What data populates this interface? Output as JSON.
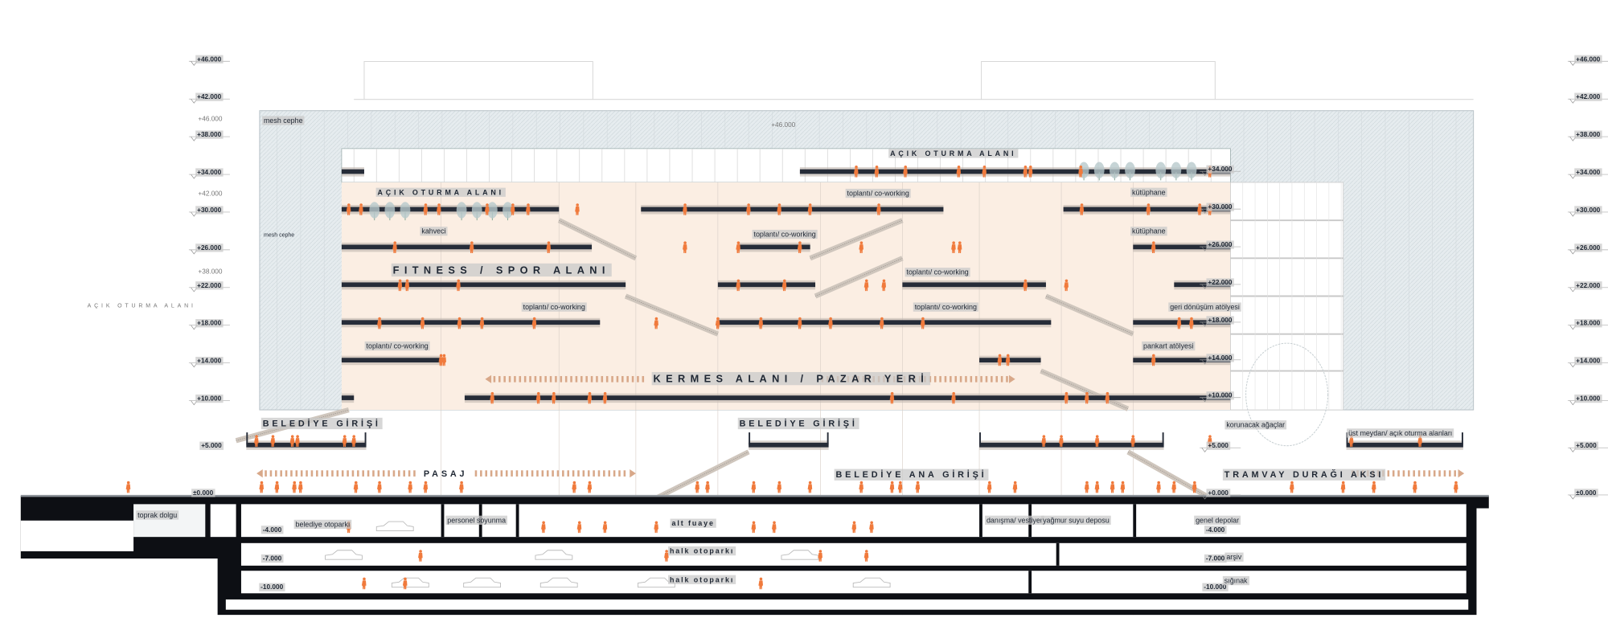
{
  "colors": {
    "slab": "#262c38",
    "people": "#f07a3c",
    "interior": "#fbeee3",
    "mesh": "#e4eaed",
    "ground": "#0d0f14",
    "label_box": "#c9c9c9"
  },
  "elevations": {
    "left": [
      "+46.000",
      "+42.000",
      "+38.000",
      "+34.000",
      "+30.000",
      "+26.000",
      "+22.000",
      "+18.000",
      "+14.000",
      "+10.000"
    ],
    "right": [
      "+46.000",
      "+42.000",
      "+38.000",
      "+34.000",
      "+30.000",
      "+26.000",
      "+22.000",
      "+18.000",
      "+14.000",
      "+10.000",
      "+5.000",
      "±0.000"
    ],
    "interior": [
      "+34.000",
      "+30.000",
      "+26.000",
      "+22.000",
      "+18.000",
      "+14.000",
      "+10.000",
      "+5.000",
      "+0.000"
    ],
    "left_lower": {
      "plus5": "+5.000",
      "zero": "±0.000"
    },
    "ghost": {
      "a": "+46.000",
      "b": "+42.000",
      "c": "+38.000",
      "d": "+46.000"
    },
    "basement_left": {
      "m4": "-4.000",
      "m7": "-7.000",
      "m10": "-10.000"
    },
    "basement_right": {
      "m4": "-4.000",
      "m7": "-7.000",
      "m10": "-10.000"
    }
  },
  "labels": {
    "mesh_facade": "mesh cephe",
    "mesh_facade_2": "mesh cephe",
    "open_seating_top": "AÇIK OTURMA ALANI",
    "open_seating": "AÇIK OTURMA ALANI",
    "open_seating_ghost": "AÇIK OTURMA ALANI",
    "meeting_1": "toplantı/ co-working",
    "meeting_2": "toplantı/ co-working",
    "meeting_3": "toplantı/ co-working",
    "meeting_4": "toplantı/ co-working",
    "meeting_5": "toplantı/ co-working",
    "meeting_6": "toplantı/ co-working",
    "library_1": "kütüphane",
    "library_2": "kütüphane",
    "cafe": "kahveci",
    "fitness": "FITNESS / SPOR ALANI",
    "recycling": "geri dönüşüm atölyesi",
    "banner_workshop": "pankart atölyesi",
    "bazaar": "KERMES ALANI / PAZAR YERİ",
    "municipal_entrance_1": "BELEDİYE GİRİŞİ",
    "municipal_entrance_2": "BELEDİYE GİRİŞİ",
    "preserved_trees": "korunacak ağaçlar",
    "upper_square": "üst meydan/ açık oturma alanları",
    "passage": "PASAJ",
    "main_entrance": "BELEDİYE ANA GİRİŞİ",
    "tram_axis": "TRAMVAY DURAĞI AKSI",
    "soil_fill": "toprak dolgu",
    "municipal_parking": "belediye otoparkı",
    "staff_changing": "personel soyunma",
    "lower_foyer": "alt fuaye",
    "info_cloakroom": "danışma/ vestiyer",
    "rainwater_tank": "yağmur suyu deposu",
    "general_storage": "genel depolar",
    "public_parking_1": "halk otoparkı",
    "public_parking_2": "halk otoparkı",
    "archive": "arşiv",
    "shelter": "sığınak"
  }
}
